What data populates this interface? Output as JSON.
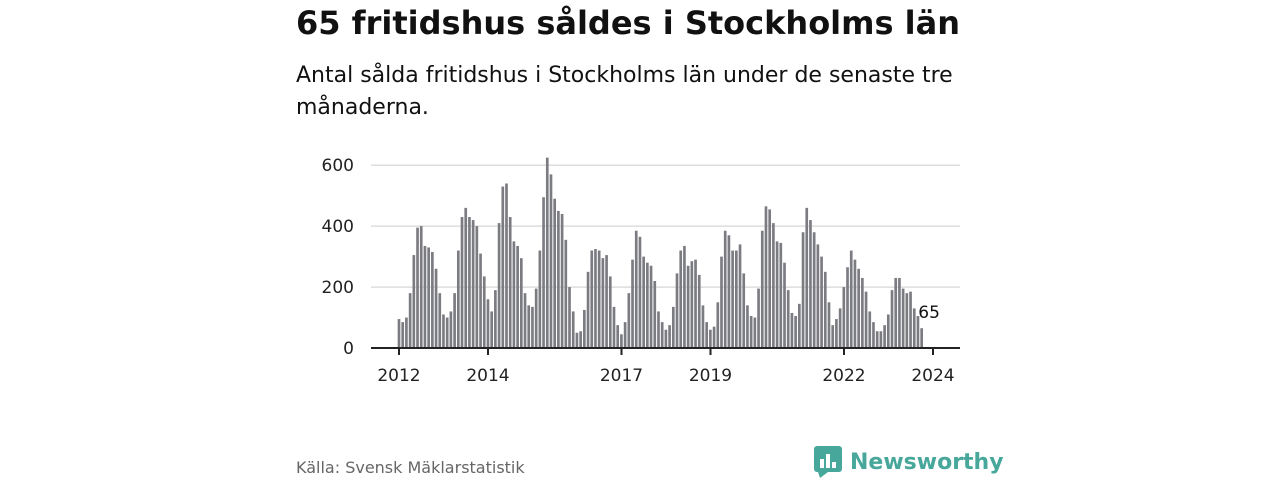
{
  "title": "65 fritidshus såldes i Stockholms län",
  "subtitle": "Antal sålda fritidshus i Stockholms län under de senaste tre månaderna.",
  "source": "Källa: Svensk Mäklarstatistik",
  "brand": {
    "name": "Newsworthy",
    "color": "#47a79b",
    "icon": "newsworthy-logo-icon"
  },
  "colors": {
    "bar": "#7b7b82",
    "highlight": "#2aa198",
    "grid": "#dddddd",
    "axis": "#222222"
  },
  "chart_data": {
    "type": "bar",
    "title": "65 fritidshus såldes i Stockholms län",
    "subtitle": "Antal sålda fritidshus i Stockholms län under de senaste tre månaderna.",
    "xlabel": "",
    "ylabel": "",
    "x_unit": "year (monthly bars, rolling three-month totals)",
    "ylim": [
      0,
      650
    ],
    "yticks": [
      0,
      200,
      400,
      600
    ],
    "xticks": [
      {
        "value": 2012.0,
        "label": "2012"
      },
      {
        "value": 2014.0,
        "label": "2014"
      },
      {
        "value": 2017.0,
        "label": "2017"
      },
      {
        "value": 2019.0,
        "label": "2019"
      },
      {
        "value": 2022.0,
        "label": "2022"
      },
      {
        "value": 2024.0,
        "label": "2024"
      }
    ],
    "grid": true,
    "start": 2012.0,
    "step": 0.0833,
    "values": [
      95,
      85,
      100,
      180,
      305,
      395,
      400,
      335,
      330,
      315,
      260,
      180,
      110,
      100,
      120,
      180,
      320,
      430,
      460,
      430,
      420,
      400,
      310,
      235,
      160,
      120,
      190,
      410,
      530,
      540,
      430,
      350,
      335,
      295,
      180,
      140,
      135,
      195,
      320,
      495,
      625,
      570,
      490,
      450,
      440,
      355,
      200,
      120,
      50,
      55,
      125,
      250,
      320,
      325,
      320,
      295,
      305,
      235,
      135,
      75,
      45,
      85,
      180,
      290,
      385,
      365,
      300,
      280,
      270,
      220,
      120,
      85,
      60,
      75,
      135,
      245,
      320,
      335,
      270,
      285,
      290,
      240,
      140,
      85,
      60,
      70,
      150,
      300,
      385,
      370,
      320,
      320,
      340,
      245,
      140,
      105,
      100,
      195,
      385,
      465,
      455,
      410,
      350,
      345,
      280,
      190,
      115,
      105,
      145,
      380,
      460,
      420,
      380,
      340,
      300,
      250,
      150,
      75,
      95,
      130,
      200,
      265,
      320,
      290,
      260,
      230,
      185,
      120,
      85,
      55,
      55,
      75,
      110,
      190,
      230,
      230,
      195,
      180,
      185,
      130,
      105,
      65
    ],
    "highlight": {
      "index": 143,
      "value": 65,
      "label": "65"
    }
  }
}
